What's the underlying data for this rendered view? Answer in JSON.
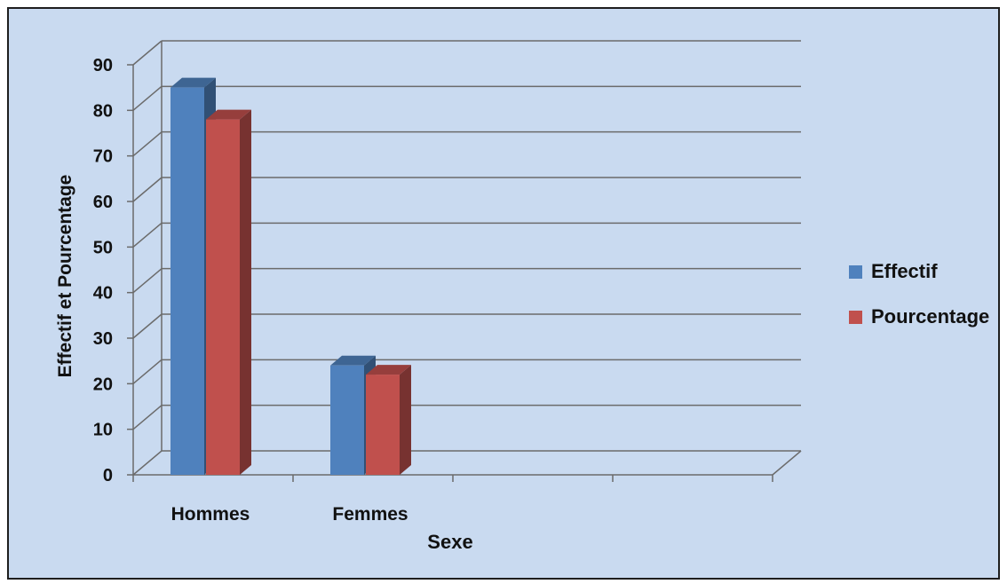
{
  "chart_data": {
    "type": "bar",
    "categories": [
      "Hommes",
      "Femmes"
    ],
    "series": [
      {
        "name": "Effectif",
        "values": [
          85,
          24
        ],
        "color": "#4f81bd"
      },
      {
        "name": "Pourcentage",
        "values": [
          78,
          22
        ],
        "color": "#c0504d"
      }
    ],
    "xlabel": "Sexe",
    "ylabel": "Effectif et Pourcentage",
    "ylim": [
      0,
      90
    ],
    "yticks": [
      0,
      10,
      20,
      30,
      40,
      50,
      60,
      70,
      80,
      90
    ],
    "grid": true,
    "legend_position": "right",
    "style": "3d-clustered-column"
  },
  "colors": {
    "plot_background": "#c9daf0",
    "gridline": "#6b6b6b"
  }
}
